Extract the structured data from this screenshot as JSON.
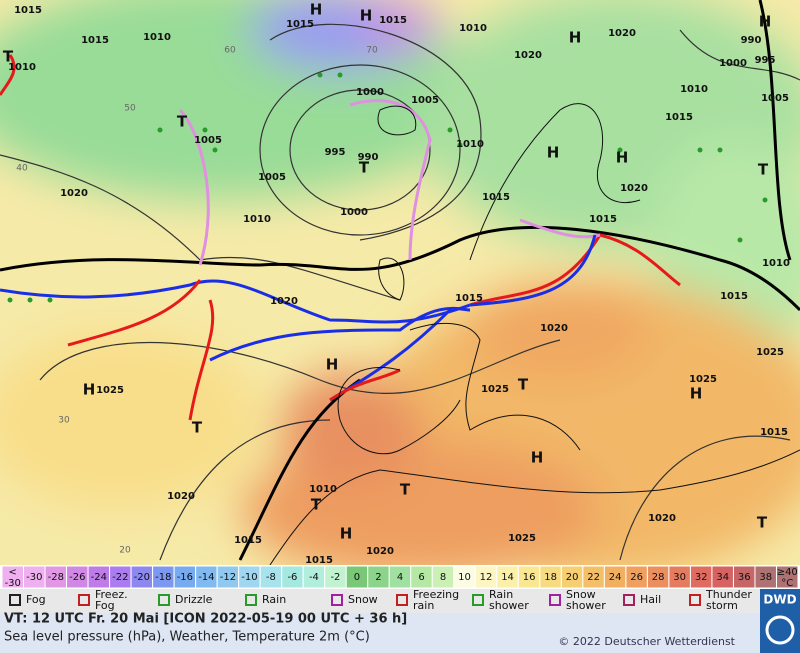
{
  "map": {
    "labels": [
      "1015",
      "1015",
      "1015",
      "1010",
      "1010",
      "1015",
      "1020",
      "1020",
      "990",
      "995",
      "1000",
      "1010",
      "1000",
      "1005",
      "1005",
      "995",
      "990",
      "1005",
      "1000",
      "1010",
      "1020",
      "1010",
      "1010",
      "1005",
      "1015",
      "1020",
      "1015",
      "1015",
      "1010",
      "1020",
      "1015",
      "1020",
      "1015",
      "1025",
      "1025",
      "1025",
      "1025",
      "1015",
      "1020",
      "1010",
      "1015",
      "1020",
      "1025",
      "1020",
      "1015",
      "H",
      "H",
      "H",
      "H",
      "H",
      "H",
      "T",
      "T",
      "T",
      "H",
      "T",
      "H",
      "H",
      "H",
      "T",
      "T",
      "H",
      "T",
      "T",
      "T",
      "30",
      "20",
      "40",
      "50",
      "60",
      "70"
    ]
  },
  "color_scale": {
    "below": [
      "<",
      "-30"
    ],
    "values": [
      -30,
      -28,
      -26,
      -24,
      -22,
      -20,
      -18,
      -16,
      -14,
      -12,
      -10,
      -8,
      -6,
      -4,
      -2,
      0,
      2,
      4,
      6,
      8,
      10,
      12,
      14,
      16,
      18,
      20,
      22,
      24,
      26,
      28,
      30,
      32,
      34,
      36,
      38
    ],
    "above": [
      "≥40",
      "°C"
    ],
    "colors": [
      "#eeb0ee",
      "#e098e4",
      "#d088e4",
      "#bf7ce8",
      "#aa7cf0",
      "#8c88f0",
      "#7c98f0",
      "#78aaf0",
      "#80baf0",
      "#90c8f0",
      "#a0d6f0",
      "#a8e2ec",
      "#a4e8e0",
      "#b2eedc",
      "#c2f2d0",
      "#78c878",
      "#8cd48c",
      "#a0e0a0",
      "#b4e8a4",
      "#cbf0b4",
      "#fcfce4",
      "#fbf6c4",
      "#fbf0aa",
      "#f9e792",
      "#f7db82",
      "#f5cf72",
      "#f3bf68",
      "#f1af60",
      "#ef9f60",
      "#eb8f60",
      "#e57c60",
      "#df6c60",
      "#d66262",
      "#c66666",
      "#ae7272"
    ]
  },
  "legend": [
    [
      "Fog"
    ],
    [
      "Freez.",
      "Fog"
    ],
    [
      "Drizzle"
    ],
    [
      "Rain"
    ],
    [
      "Snow"
    ],
    [
      "Freezing",
      "rain"
    ],
    [
      "Rain",
      "shower"
    ],
    [
      "Snow",
      "shower"
    ],
    [
      "Hail"
    ],
    [
      "Thunder",
      "storm"
    ]
  ],
  "footer": {
    "line1": "VT: 12 UTC Fr.  20 Mai [ICON 2022-05-19  00 UTC + 36 h]",
    "line2": "Sea level pressure (hPa), Weather, Temperature 2m (°C)",
    "copyright": "© 2022 Deutscher Wetterdienst",
    "logo": "DWD"
  }
}
